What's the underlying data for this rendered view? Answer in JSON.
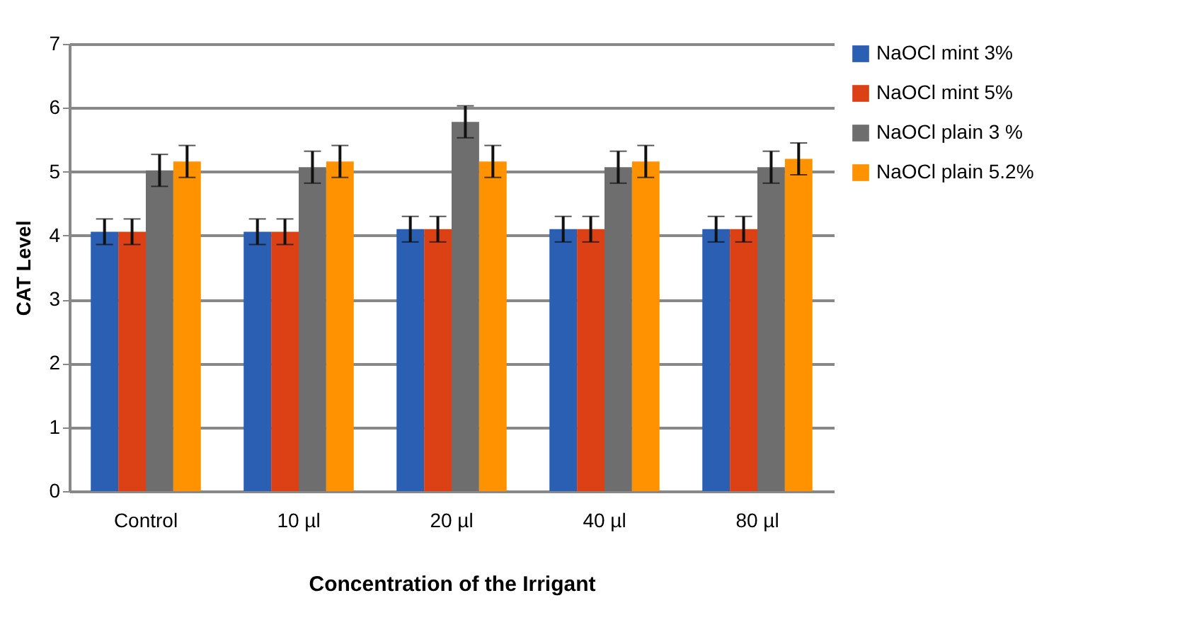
{
  "chart_data": {
    "type": "bar",
    "xlabel": "Concentration of the Irrigant",
    "ylabel": "CAT Level",
    "categories": [
      "Control",
      "10 µl",
      "20 µl",
      "40 µl",
      "80 µl"
    ],
    "series": [
      {
        "name": "NaOCl mint 3%",
        "color": "#2a5fb3",
        "values": [
          4.06,
          4.06,
          4.1,
          4.1,
          4.1
        ],
        "errors": [
          0.2,
          0.2,
          0.2,
          0.2,
          0.2
        ]
      },
      {
        "name": "NaOCl mint 5%",
        "color": "#dc4116",
        "values": [
          4.06,
          4.06,
          4.1,
          4.1,
          4.1
        ],
        "errors": [
          0.2,
          0.2,
          0.2,
          0.2,
          0.2
        ]
      },
      {
        "name": "NaOCl plain 3 %",
        "color": "#6e6e6e",
        "values": [
          5.02,
          5.07,
          5.78,
          5.07,
          5.07
        ],
        "errors": [
          0.25,
          0.25,
          0.25,
          0.25,
          0.25
        ]
      },
      {
        "name": "NaOCl plain 5.2%",
        "color": "#ff9200",
        "values": [
          5.16,
          5.16,
          5.16,
          5.16,
          5.2
        ],
        "errors": [
          0.25,
          0.25,
          0.25,
          0.25,
          0.25
        ]
      }
    ],
    "ylim": [
      0,
      7
    ],
    "yticks": [
      0,
      1,
      2,
      3,
      4,
      5,
      6,
      7
    ],
    "grid": "y",
    "legend": "right"
  }
}
